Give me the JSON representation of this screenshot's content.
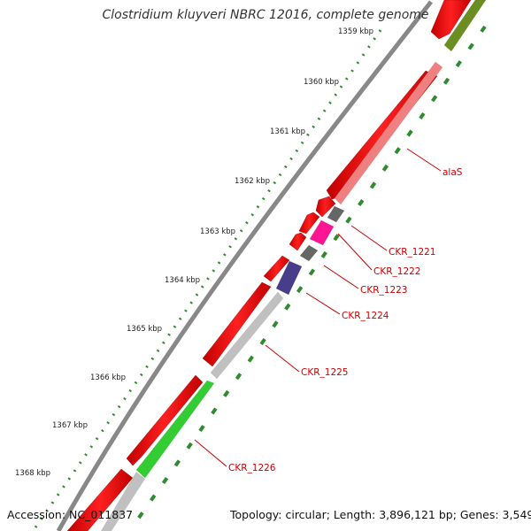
{
  "title": "Clostridium kluyveri NBRC 12016, complete genome",
  "footer": {
    "accession": "Accession: NC_011837",
    "summary": "Topology: circular; Length: 3,896,121 bp; Genes: 3,549"
  },
  "scale": {
    "ticks": [
      "1359 kbp",
      "1360 kbp",
      "1361 kbp",
      "1362 kbp",
      "1363 kbp",
      "1364 kbp",
      "1365 kbp",
      "1366 kbp",
      "1367 kbp",
      "1368 kbp"
    ]
  },
  "colors": {
    "cds": "#ff0000",
    "backbone": "#888888",
    "gc_skew": "#2e8b2e",
    "label": "#cc0000"
  },
  "genes": [
    {
      "label": "alaS",
      "color": "#f08080"
    },
    {
      "label": "CKR_1221",
      "color": "#666666"
    },
    {
      "label": "CKR_1222",
      "color": "#ff1493"
    },
    {
      "label": "CKR_1223",
      "color": "#666666"
    },
    {
      "label": "CKR_1224",
      "color": "#483d8b"
    },
    {
      "label": "CKR_1225",
      "color": "#c0c0c0"
    },
    {
      "label": "CKR_1226",
      "color": "#33cc33"
    },
    {
      "label": "",
      "color": "#6b8e23"
    }
  ]
}
